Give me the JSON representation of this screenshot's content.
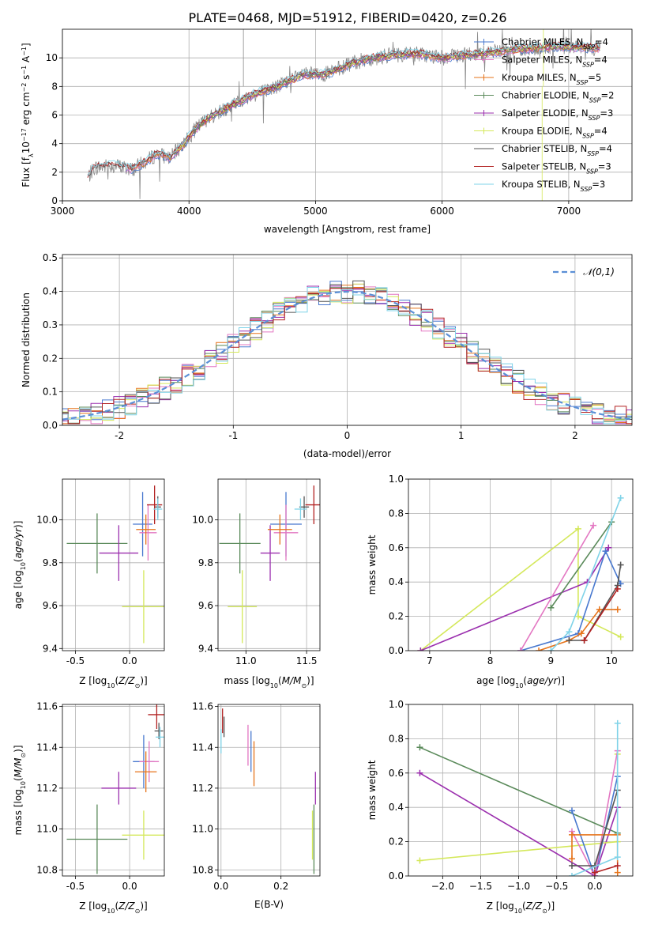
{
  "figure": {
    "title": "PLATE=0468, MJD=51912, FIBERID=0420, z=0.26"
  },
  "colors": {
    "Chabrier MILES": "#4878cf",
    "Salpeter MILES": "#e377c2",
    "Kroupa MILES": "#e6731a",
    "Chabrier ELODIE": "#5a8a5a",
    "Salpeter ELODIE": "#9b2fae",
    "Kroupa ELODIE": "#d4e85a",
    "Chabrier STELIB": "#555555",
    "Salpeter STELIB": "#b22222",
    "Kroupa STELIB": "#7fd3e8",
    "normal": "#5b8fd6"
  },
  "chart_data": [
    {
      "type": "line",
      "id": "spectrum",
      "xlabel": "wavelength [Angstrom, rest frame]",
      "ylabel": "Flux [f_λ10^-17 erg cm^-2 s^-1 A^-1]",
      "xlim": [
        3000,
        7500
      ],
      "ylim": [
        0,
        12
      ],
      "xticks": [
        3000,
        4000,
        5000,
        6000,
        7000
      ],
      "yticks": [
        0,
        2,
        4,
        6,
        8,
        10
      ],
      "legend_position": "top-right",
      "data_color": "#888888",
      "continuum": {
        "x": [
          3200,
          3250,
          3400,
          3550,
          3650,
          3750,
          3850,
          3950,
          4050,
          4150,
          4300,
          4500,
          4700,
          4900,
          5100,
          5250,
          5400,
          5600,
          5800,
          6000,
          6300,
          6600,
          6900,
          7200
        ],
        "y": [
          1.6,
          2.3,
          2.5,
          2.2,
          2.7,
          3.3,
          3.0,
          3.9,
          5.0,
          5.8,
          6.5,
          7.4,
          8.0,
          8.8,
          8.9,
          9.5,
          9.9,
          10.2,
          10.3,
          10.0,
          10.3,
          10.6,
          10.8,
          10.7
        ]
      },
      "series": [
        {
          "name": "Chabrier MILES",
          "nssp": "4",
          "x0": 3500
        },
        {
          "name": "Salpeter MILES",
          "nssp": "4",
          "x0": 3500
        },
        {
          "name": "Kroupa MILES",
          "nssp": "5",
          "x0": 3540
        },
        {
          "name": "Chabrier ELODIE",
          "nssp": "2",
          "x0": 3900
        },
        {
          "name": "Salpeter ELODIE",
          "nssp": "3",
          "x0": 3900
        },
        {
          "name": "Kroupa ELODIE",
          "nssp": "4",
          "x0": 3900
        },
        {
          "name": "Chabrier STELIB",
          "nssp": "4",
          "x0": 3200
        },
        {
          "name": "Salpeter STELIB",
          "nssp": "3",
          "x0": 3200
        },
        {
          "name": "Kroupa STELIB",
          "nssp": "3",
          "x0": 3200
        }
      ]
    },
    {
      "type": "histogram",
      "id": "residuals",
      "xlabel": "(data-model)/error",
      "ylabel": "Normed distribution",
      "xlim": [
        -2.5,
        2.5
      ],
      "ylim": [
        0,
        0.51
      ],
      "xticks": [
        -2,
        -1,
        0,
        1,
        2
      ],
      "yticks": [
        0.0,
        0.1,
        0.2,
        0.3,
        0.4,
        0.5
      ],
      "bin_width": 0.1,
      "legend": "𝒩(0,1)",
      "legend_position": "top-right"
    },
    {
      "type": "scatter",
      "id": "age_vs_z",
      "xlabel": "Z [log10(Z/Z☉)]",
      "ylabel": "age  [log10(age/yr)]",
      "xlim": [
        -0.62,
        0.32
      ],
      "ylim": [
        9.39,
        10.19
      ],
      "xticks": [
        -0.5,
        0.0
      ],
      "yticks": [
        9.4,
        9.6,
        9.8,
        10.0
      ],
      "points": [
        {
          "name": "Chabrier ELODIE",
          "x": -0.3,
          "y": 9.89,
          "xerr": 0.28,
          "yerr": 0.14
        },
        {
          "name": "Salpeter ELODIE",
          "x": -0.1,
          "y": 9.845,
          "xerr": 0.18,
          "yerr": 0.13
        },
        {
          "name": "Kroupa ELODIE",
          "x": 0.13,
          "y": 9.595,
          "xerr": 0.2,
          "yerr": 0.17
        },
        {
          "name": "Chabrier MILES",
          "x": 0.12,
          "y": 9.98,
          "xerr": 0.09,
          "yerr": 0.15
        },
        {
          "name": "Salpeter MILES",
          "x": 0.17,
          "y": 9.94,
          "xerr": 0.08,
          "yerr": 0.13
        },
        {
          "name": "Kroupa MILES",
          "x": 0.15,
          "y": 9.955,
          "xerr": 0.09,
          "yerr": 0.07
        },
        {
          "name": "Chabrier STELIB",
          "x": 0.26,
          "y": 10.06,
          "xerr": 0.03,
          "yerr": 0.05
        },
        {
          "name": "Salpeter STELIB",
          "x": 0.23,
          "y": 10.07,
          "xerr": 0.07,
          "yerr": 0.09
        },
        {
          "name": "Kroupa STELIB",
          "x": 0.26,
          "y": 10.05,
          "xerr": 0.04,
          "yerr": 0.05
        }
      ]
    },
    {
      "type": "scatter",
      "id": "age_vs_mass",
      "xlabel": "mass [log10(M/M☉)]",
      "xlim": [
        10.77,
        11.61
      ],
      "ylim": [
        9.39,
        10.19
      ],
      "xticks": [
        11.0,
        11.5
      ],
      "yticks": [
        9.4,
        9.6,
        9.8,
        10.0
      ],
      "points": [
        {
          "name": "Chabrier ELODIE",
          "x": 10.95,
          "y": 9.89,
          "xerr": 0.17,
          "yerr": 0.14
        },
        {
          "name": "Salpeter ELODIE",
          "x": 11.2,
          "y": 9.845,
          "xerr": 0.08,
          "yerr": 0.13
        },
        {
          "name": "Kroupa ELODIE",
          "x": 10.97,
          "y": 9.595,
          "xerr": 0.12,
          "yerr": 0.17
        },
        {
          "name": "Chabrier MILES",
          "x": 11.33,
          "y": 9.98,
          "xerr": 0.13,
          "yerr": 0.15
        },
        {
          "name": "Salpeter MILES",
          "x": 11.33,
          "y": 9.94,
          "xerr": 0.1,
          "yerr": 0.13
        },
        {
          "name": "Kroupa MILES",
          "x": 11.28,
          "y": 9.955,
          "xerr": 0.1,
          "yerr": 0.07
        },
        {
          "name": "Chabrier STELIB",
          "x": 11.48,
          "y": 10.06,
          "xerr": 0.04,
          "yerr": 0.05
        },
        {
          "name": "Salpeter STELIB",
          "x": 11.56,
          "y": 10.07,
          "xerr": 0.07,
          "yerr": 0.09
        },
        {
          "name": "Kroupa STELIB",
          "x": 11.45,
          "y": 10.05,
          "xerr": 0.05,
          "yerr": 0.05
        }
      ]
    },
    {
      "type": "line",
      "id": "weight_vs_age",
      "xlabel": "age  [log10(age/yr)]",
      "ylabel": "mass weight",
      "xlim": [
        6.65,
        10.35
      ],
      "ylim": [
        0,
        1
      ],
      "xticks": [
        7,
        8,
        9,
        10
      ],
      "yticks": [
        0.0,
        0.2,
        0.4,
        0.6,
        0.8,
        1.0
      ],
      "series": [
        {
          "name": "Kroupa ELODIE",
          "x": [
            6.85,
            9.45,
            9.45,
            10.15
          ],
          "y": [
            0.0,
            0.71,
            0.2,
            0.08
          ]
        },
        {
          "name": "Salpeter ELODIE",
          "x": [
            6.85,
            9.6,
            9.95
          ],
          "y": [
            0.0,
            0.4,
            0.6
          ]
        },
        {
          "name": "Chabrier ELODIE",
          "x": [
            9.0,
            10.0
          ],
          "y": [
            0.25,
            0.75
          ]
        },
        {
          "name": "Chabrier MILES",
          "x": [
            8.5,
            9.45,
            9.9,
            10.15
          ],
          "y": [
            0.0,
            0.1,
            0.58,
            0.39
          ]
        },
        {
          "name": "Salpeter MILES",
          "x": [
            8.5,
            9.7
          ],
          "y": [
            0.0,
            0.73
          ]
        },
        {
          "name": "Kroupa MILES",
          "x": [
            8.8,
            9.3,
            9.5,
            9.8,
            10.1
          ],
          "y": [
            0.0,
            0.06,
            0.1,
            0.24,
            0.24
          ]
        },
        {
          "name": "Chabrier STELIB",
          "x": [
            9.3,
            9.55,
            10.1,
            10.15
          ],
          "y": [
            0.06,
            0.06,
            0.38,
            0.5
          ]
        },
        {
          "name": "Salpeter STELIB",
          "x": [
            9.55,
            10.1
          ],
          "y": [
            0.06,
            0.36
          ]
        },
        {
          "name": "Kroupa STELIB",
          "x": [
            9.0,
            9.3,
            10.15
          ],
          "y": [
            0.0,
            0.11,
            0.89
          ]
        }
      ]
    },
    {
      "type": "scatter",
      "id": "mass_vs_z",
      "xlabel": "Z [log10(Z/Z☉)]",
      "ylabel": "mass [log10(M/M☉)]",
      "xlim": [
        -0.62,
        0.32
      ],
      "ylim": [
        10.77,
        11.61
      ],
      "xticks": [
        -0.5,
        0.0
      ],
      "yticks": [
        10.8,
        11.0,
        11.2,
        11.4,
        11.6
      ],
      "points": [
        {
          "name": "Chabrier ELODIE",
          "x": -0.3,
          "y": 10.95,
          "xerr": 0.28,
          "yerr": 0.17
        },
        {
          "name": "Salpeter ELODIE",
          "x": -0.1,
          "y": 11.2,
          "xerr": 0.16,
          "yerr": 0.08
        },
        {
          "name": "Kroupa ELODIE",
          "x": 0.13,
          "y": 10.97,
          "xerr": 0.2,
          "yerr": 0.12
        },
        {
          "name": "Chabrier MILES",
          "x": 0.13,
          "y": 11.33,
          "xerr": 0.1,
          "yerr": 0.13
        },
        {
          "name": "Salpeter MILES",
          "x": 0.18,
          "y": 11.33,
          "xerr": 0.09,
          "yerr": 0.1
        },
        {
          "name": "Kroupa MILES",
          "x": 0.15,
          "y": 11.28,
          "xerr": 0.1,
          "yerr": 0.1
        },
        {
          "name": "Chabrier STELIB",
          "x": 0.27,
          "y": 11.48,
          "xerr": 0.04,
          "yerr": 0.04
        },
        {
          "name": "Salpeter STELIB",
          "x": 0.25,
          "y": 11.56,
          "xerr": 0.08,
          "yerr": 0.07
        },
        {
          "name": "Kroupa STELIB",
          "x": 0.28,
          "y": 11.45,
          "xerr": 0.04,
          "yerr": 0.05
        }
      ]
    },
    {
      "type": "scatter",
      "id": "mass_vs_ebv",
      "xlabel": "E(B-V)",
      "xlim": [
        -0.01,
        0.33
      ],
      "ylim": [
        10.77,
        11.61
      ],
      "xticks": [
        0.0,
        0.2
      ],
      "yticks": [
        10.8,
        11.0,
        11.2,
        11.4,
        11.6
      ],
      "points": [
        {
          "name": "Chabrier ELODIE",
          "x": 0.31,
          "y": 10.95,
          "xerr": 0.0,
          "yerr": 0.17
        },
        {
          "name": "Salpeter ELODIE",
          "x": 0.315,
          "y": 11.2,
          "xerr": 0.0,
          "yerr": 0.08
        },
        {
          "name": "Kroupa ELODIE",
          "x": 0.305,
          "y": 10.97,
          "xerr": 0.0,
          "yerr": 0.12
        },
        {
          "name": "Chabrier MILES",
          "x": 0.1,
          "y": 11.38,
          "xerr": 0.0,
          "yerr": 0.1
        },
        {
          "name": "Salpeter MILES",
          "x": 0.09,
          "y": 11.41,
          "xerr": 0.0,
          "yerr": 0.1
        },
        {
          "name": "Kroupa MILES",
          "x": 0.11,
          "y": 11.32,
          "xerr": 0.0,
          "yerr": 0.11
        },
        {
          "name": "Chabrier STELIB",
          "x": 0.01,
          "y": 11.5,
          "xerr": 0.0,
          "yerr": 0.05
        },
        {
          "name": "Salpeter STELIB",
          "x": 0.005,
          "y": 11.53,
          "xerr": 0.0,
          "yerr": 0.06
        },
        {
          "name": "Kroupa STELIB",
          "x": 0.0,
          "y": 11.43,
          "xerr": 0.0,
          "yerr": 0.06
        }
      ]
    },
    {
      "type": "line",
      "id": "weight_vs_z",
      "xlabel": "Z [log10(Z/Z☉)]",
      "ylabel": "mass weight",
      "xlim": [
        -2.45,
        0.5
      ],
      "ylim": [
        0,
        1
      ],
      "xticks": [
        -2.0,
        -1.5,
        -1.0,
        -0.5,
        0.0
      ],
      "yticks": [
        0.0,
        0.2,
        0.4,
        0.6,
        0.8,
        1.0
      ],
      "series": [
        {
          "name": "Chabrier ELODIE",
          "x": [
            -2.3,
            0.3
          ],
          "y": [
            0.75,
            0.25
          ]
        },
        {
          "name": "Salpeter ELODIE",
          "x": [
            -2.3,
            0.0,
            0.3
          ],
          "y": [
            0.6,
            0.0,
            0.4
          ]
        },
        {
          "name": "Kroupa ELODIE",
          "x": [
            -2.3,
            0.3,
            0.3
          ],
          "y": [
            0.09,
            0.2,
            0.71
          ]
        },
        {
          "name": "Chabrier MILES",
          "x": [
            -0.3,
            0.0,
            0.3
          ],
          "y": [
            0.38,
            0.0,
            0.58
          ]
        },
        {
          "name": "Salpeter MILES",
          "x": [
            -0.3,
            0.0,
            0.3
          ],
          "y": [
            0.26,
            0.0,
            0.73
          ]
        },
        {
          "name": "Kroupa MILES",
          "x": [
            -0.3,
            -0.3,
            0.3,
            0.3
          ],
          "y": [
            0.1,
            0.24,
            0.24,
            0.02
          ]
        },
        {
          "name": "Chabrier STELIB",
          "x": [
            -0.3,
            0.0,
            0.3
          ],
          "y": [
            0.06,
            0.06,
            0.5
          ]
        },
        {
          "name": "Salpeter STELIB",
          "x": [
            0.0,
            0.3
          ],
          "y": [
            0.02,
            0.06
          ]
        },
        {
          "name": "Kroupa STELIB",
          "x": [
            -0.3,
            0.3,
            0.3
          ],
          "y": [
            0.0,
            0.11,
            0.89
          ]
        }
      ]
    }
  ]
}
